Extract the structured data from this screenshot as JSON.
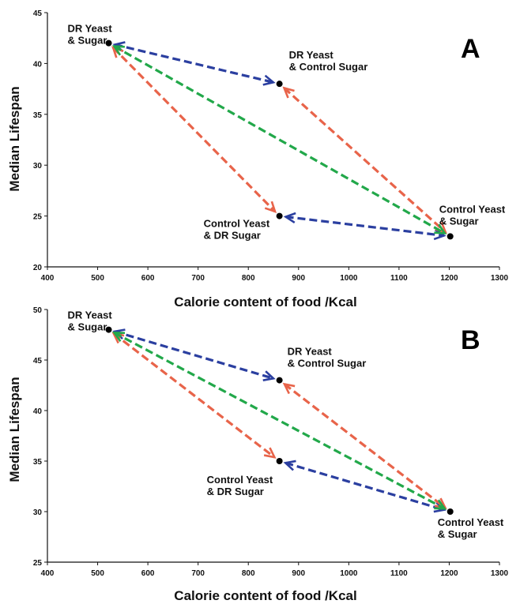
{
  "chart_data": [
    {
      "type": "scatter",
      "panel_label": "A",
      "xlabel": "Calorie content of food /Kcal",
      "ylabel": "Median Lifespan",
      "xlim": [
        400,
        1300
      ],
      "ylim": [
        20,
        45
      ],
      "xticks": [
        400,
        500,
        600,
        700,
        800,
        900,
        1000,
        1100,
        1200,
        1300
      ],
      "yticks": [
        20,
        25,
        30,
        35,
        40,
        45
      ],
      "grid": false,
      "points": [
        {
          "id": "dr-dr",
          "lines": [
            "DR Yeast",
            "& Sugar"
          ],
          "x": 522,
          "y": 42
        },
        {
          "id": "dr-ctrl",
          "lines": [
            "DR Yeast",
            "& Control Sugar"
          ],
          "x": 862,
          "y": 38
        },
        {
          "id": "ctrl-dr",
          "lines": [
            "Control Yeast",
            "& DR Sugar"
          ],
          "x": 862,
          "y": 25
        },
        {
          "id": "ctrl-ctrl",
          "lines": [
            "Control Yeast",
            "& Sugar"
          ],
          "x": 1202,
          "y": 23
        }
      ],
      "arrows": [
        {
          "from": "dr-dr",
          "to": "dr-ctrl",
          "color": "#2b3fa0"
        },
        {
          "from": "ctrl-dr",
          "to": "ctrl-ctrl",
          "color": "#2b3fa0"
        },
        {
          "from": "dr-dr",
          "to": "ctrl-dr",
          "color": "#e8644a"
        },
        {
          "from": "dr-ctrl",
          "to": "ctrl-ctrl",
          "color": "#e8644a"
        },
        {
          "from": "dr-dr",
          "to": "ctrl-ctrl",
          "color": "#22a84a"
        }
      ]
    },
    {
      "type": "scatter",
      "panel_label": "B",
      "xlabel": "Calorie content of food /Kcal",
      "ylabel": "Median Lifespan",
      "xlim": [
        400,
        1300
      ],
      "ylim": [
        25,
        50
      ],
      "xticks": [
        400,
        500,
        600,
        700,
        800,
        900,
        1000,
        1100,
        1200,
        1300
      ],
      "yticks": [
        25,
        30,
        35,
        40,
        45,
        50
      ],
      "grid": false,
      "points": [
        {
          "id": "dr-dr",
          "lines": [
            "DR Yeast",
            "& Sugar"
          ],
          "x": 522,
          "y": 48
        },
        {
          "id": "dr-ctrl",
          "lines": [
            "DR Yeast",
            "& Control Sugar"
          ],
          "x": 862,
          "y": 43
        },
        {
          "id": "ctrl-dr",
          "lines": [
            "Control Yeast",
            "& DR Sugar"
          ],
          "x": 862,
          "y": 35
        },
        {
          "id": "ctrl-ctrl",
          "lines": [
            "Control Yeast",
            "& Sugar"
          ],
          "x": 1202,
          "y": 30
        }
      ],
      "arrows": [
        {
          "from": "dr-dr",
          "to": "dr-ctrl",
          "color": "#2b3fa0"
        },
        {
          "from": "ctrl-dr",
          "to": "ctrl-ctrl",
          "color": "#2b3fa0"
        },
        {
          "from": "dr-dr",
          "to": "ctrl-dr",
          "color": "#e8644a"
        },
        {
          "from": "dr-ctrl",
          "to": "ctrl-ctrl",
          "color": "#e8644a"
        },
        {
          "from": "dr-dr",
          "to": "ctrl-ctrl",
          "color": "#22a84a"
        }
      ]
    }
  ]
}
